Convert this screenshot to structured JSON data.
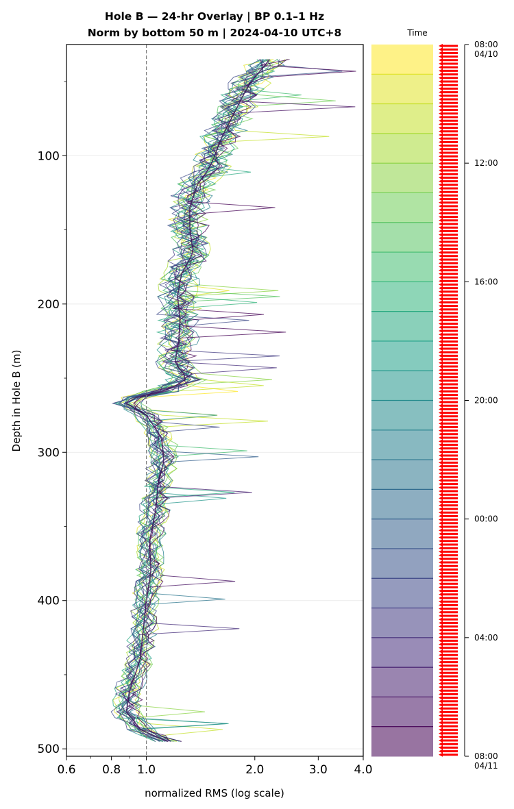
{
  "chart_data": {
    "type": "line",
    "title": "Hole B — 24-hr Overlay  |  BP 0.1–1 Hz",
    "subtitle": "Norm by bottom 50 m  |  2024-04-10 UTC+8",
    "xlabel": "normalized RMS  (log scale)",
    "ylabel": "Depth in Hole B (m)",
    "x_scale": "log",
    "xlim": [
      0.6,
      4.0
    ],
    "ylim": [
      505,
      25
    ],
    "x_ticks": [
      "0.6",
      "0.8",
      "1.0",
      "2.0",
      "3.0",
      "4.0"
    ],
    "y_ticks": [
      "100",
      "200",
      "300",
      "400",
      "500"
    ],
    "reference_line_x": 1.0,
    "grid": "horizontal",
    "colormap": "viridis",
    "series_count": 24,
    "mean_profile": {
      "depth": [
        35,
        50,
        60,
        75,
        90,
        100,
        110,
        120,
        135,
        150,
        165,
        180,
        195,
        210,
        225,
        240,
        250,
        258,
        265,
        275,
        290,
        305,
        320,
        340,
        360,
        380,
        400,
        420,
        440,
        460,
        475,
        488,
        497
      ],
      "rms": [
        2.2,
        1.95,
        1.85,
        1.72,
        1.6,
        1.55,
        1.48,
        1.38,
        1.32,
        1.32,
        1.35,
        1.25,
        1.22,
        1.24,
        1.23,
        1.2,
        1.3,
        1.15,
        0.85,
        1.0,
        1.1,
        1.12,
        1.08,
        1.06,
        1.02,
        1.03,
        1.0,
        0.98,
        0.96,
        0.9,
        0.88,
        0.97,
        1.2
      ]
    },
    "colorbar": {
      "label": "Time",
      "ticks": [
        "08:00\n04/10",
        "12:00",
        "16:00",
        "20:00",
        "00:00",
        "04:00",
        "08:00\n04/11"
      ],
      "marker_color": "#ff0000"
    }
  }
}
